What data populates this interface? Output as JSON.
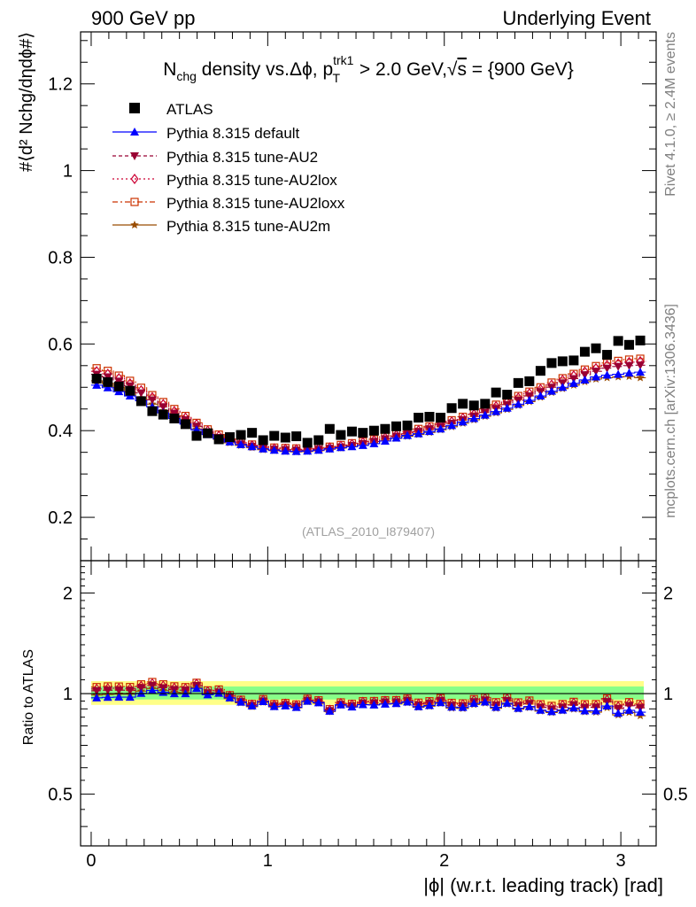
{
  "header": {
    "left": "900 GeV pp",
    "right": "Underlying Event"
  },
  "side": {
    "rivet": "Rivet 4.1.0, ≥ 2.4M events",
    "mcplots": "mcplots.cern.ch [arXiv:1306.3436]"
  },
  "watermark": "(ATLAS_2010_I879407)",
  "chart_data": {
    "type": "scatter",
    "title": "Nchg density vs.Δϕ, pT trk1 > 2.0 GeV, √s = {900 GeV}",
    "title_parts": {
      "a": "N",
      "a_sub": "chg",
      "b": " density vs.",
      "c": "Δϕ, p",
      "c_sup": "trk1",
      "c_sub": "T",
      "d": " > 2.0 GeV,",
      "sqrt": "√",
      "s": "s",
      "e": " = {900 GeV}"
    },
    "ylabel_main": "#⟨d² Nchg/dηdϕ#⟩",
    "ylabel_ratio": "Ratio to ATLAS",
    "xlabel": "|ϕ| (w.r.t. leading track) [rad]",
    "main_ylim": [
      0.1,
      1.32
    ],
    "main_yticks": [
      "0.2",
      "0.4",
      "0.6",
      "0.8",
      "1",
      "1.2"
    ],
    "ratio_ylim": [
      0.35,
      2.5
    ],
    "ratio_yticks": [
      "0.5",
      "1",
      "2"
    ],
    "xlim": [
      -0.06,
      3.2
    ],
    "xticks": [
      "0",
      "1",
      "2",
      "3"
    ],
    "x": [
      0.031,
      0.094,
      0.157,
      0.22,
      0.283,
      0.346,
      0.408,
      0.471,
      0.534,
      0.597,
      0.66,
      0.723,
      0.785,
      0.848,
      0.911,
      0.974,
      1.037,
      1.1,
      1.162,
      1.225,
      1.288,
      1.351,
      1.414,
      1.477,
      1.539,
      1.602,
      1.665,
      1.728,
      1.791,
      1.854,
      1.916,
      1.979,
      2.042,
      2.105,
      2.168,
      2.231,
      2.293,
      2.356,
      2.419,
      2.482,
      2.545,
      2.608,
      2.67,
      2.733,
      2.796,
      2.859,
      2.922,
      2.985,
      3.047,
      3.11
    ],
    "series": [
      {
        "name": "ATLAS",
        "color": "#000000",
        "marker": "square",
        "values": [
          0.52,
          0.512,
          0.502,
          0.492,
          0.468,
          0.445,
          0.437,
          0.428,
          0.415,
          0.388,
          0.394,
          0.38,
          0.385,
          0.39,
          0.395,
          0.378,
          0.388,
          0.384,
          0.387,
          0.372,
          0.378,
          0.404,
          0.39,
          0.398,
          0.395,
          0.4,
          0.404,
          0.41,
          0.412,
          0.43,
          0.432,
          0.43,
          0.452,
          0.462,
          0.458,
          0.462,
          0.488,
          0.483,
          0.51,
          0.514,
          0.538,
          0.556,
          0.56,
          0.562,
          0.582,
          0.59,
          0.575,
          0.607,
          0.598,
          0.608
        ]
      },
      {
        "name": "Pythia 8.315 default",
        "color": "#0000ff",
        "marker": "triangle-up",
        "values": [
          0.505,
          0.499,
          0.49,
          0.48,
          0.469,
          0.455,
          0.441,
          0.428,
          0.415,
          0.402,
          0.391,
          0.381,
          0.374,
          0.368,
          0.363,
          0.358,
          0.355,
          0.353,
          0.352,
          0.353,
          0.355,
          0.358,
          0.361,
          0.363,
          0.366,
          0.37,
          0.376,
          0.383,
          0.389,
          0.393,
          0.398,
          0.404,
          0.412,
          0.42,
          0.428,
          0.436,
          0.444,
          0.452,
          0.461,
          0.47,
          0.48,
          0.491,
          0.5,
          0.509,
          0.517,
          0.524,
          0.528,
          0.53,
          0.533,
          0.535
        ]
      },
      {
        "name": "Pythia 8.315 tune-AU2",
        "color": "#990033",
        "marker": "triangle-down",
        "values": [
          0.53,
          0.524,
          0.514,
          0.503,
          0.487,
          0.471,
          0.455,
          0.44,
          0.425,
          0.41,
          0.396,
          0.384,
          0.376,
          0.369,
          0.364,
          0.359,
          0.357,
          0.356,
          0.355,
          0.355,
          0.357,
          0.359,
          0.362,
          0.366,
          0.37,
          0.375,
          0.381,
          0.387,
          0.393,
          0.398,
          0.404,
          0.41,
          0.417,
          0.425,
          0.433,
          0.442,
          0.451,
          0.46,
          0.47,
          0.48,
          0.49,
          0.5,
          0.51,
          0.52,
          0.529,
          0.537,
          0.544,
          0.548,
          0.55,
          0.551
        ]
      },
      {
        "name": "Pythia 8.315 tune-AU2lox",
        "color": "#cc0033",
        "marker": "diamond-open",
        "values": [
          0.537,
          0.531,
          0.521,
          0.509,
          0.493,
          0.477,
          0.461,
          0.445,
          0.43,
          0.415,
          0.4,
          0.388,
          0.379,
          0.372,
          0.366,
          0.362,
          0.359,
          0.358,
          0.357,
          0.357,
          0.359,
          0.361,
          0.365,
          0.369,
          0.373,
          0.378,
          0.384,
          0.39,
          0.396,
          0.401,
          0.407,
          0.414,
          0.421,
          0.429,
          0.438,
          0.447,
          0.456,
          0.466,
          0.476,
          0.486,
          0.496,
          0.506,
          0.517,
          0.527,
          0.536,
          0.544,
          0.551,
          0.555,
          0.558,
          0.56
        ]
      },
      {
        "name": "Pythia 8.315 tune-AU2loxx",
        "color": "#cc3300",
        "marker": "square-open",
        "values": [
          0.544,
          0.538,
          0.527,
          0.515,
          0.499,
          0.482,
          0.466,
          0.45,
          0.434,
          0.418,
          0.403,
          0.391,
          0.381,
          0.374,
          0.368,
          0.364,
          0.361,
          0.36,
          0.359,
          0.359,
          0.361,
          0.363,
          0.367,
          0.371,
          0.375,
          0.38,
          0.386,
          0.392,
          0.398,
          0.404,
          0.41,
          0.417,
          0.424,
          0.432,
          0.441,
          0.45,
          0.46,
          0.47,
          0.48,
          0.49,
          0.5,
          0.511,
          0.521,
          0.531,
          0.541,
          0.549,
          0.556,
          0.561,
          0.564,
          0.566
        ]
      },
      {
        "name": "Pythia 8.315 tune-AU2m",
        "color": "#994c00",
        "marker": "star",
        "values": [
          0.515,
          0.509,
          0.5,
          0.49,
          0.476,
          0.461,
          0.446,
          0.432,
          0.418,
          0.404,
          0.391,
          0.38,
          0.372,
          0.366,
          0.361,
          0.356,
          0.354,
          0.352,
          0.351,
          0.352,
          0.354,
          0.357,
          0.36,
          0.363,
          0.366,
          0.37,
          0.376,
          0.382,
          0.387,
          0.391,
          0.396,
          0.402,
          0.409,
          0.417,
          0.425,
          0.433,
          0.441,
          0.449,
          0.458,
          0.467,
          0.477,
          0.488,
          0.497,
          0.505,
          0.513,
          0.519,
          0.522,
          0.524,
          0.525,
          0.522
        ]
      }
    ]
  }
}
